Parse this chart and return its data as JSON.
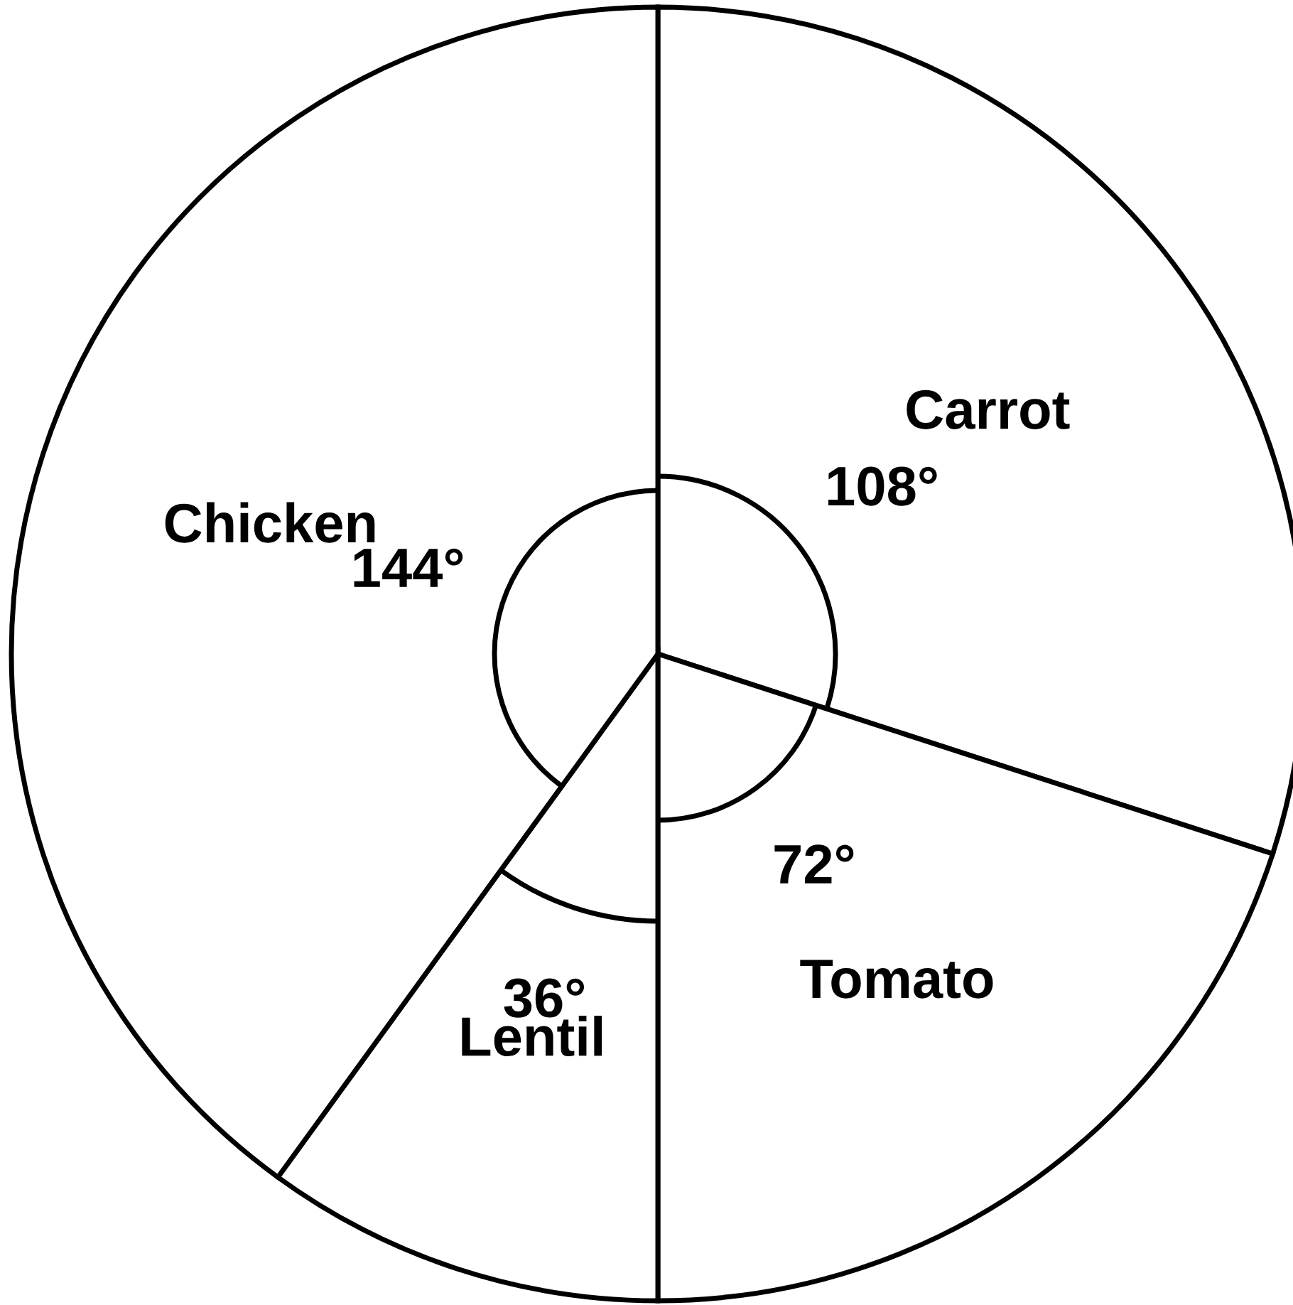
{
  "chart_data": {
    "type": "pie",
    "categories": [
      "Carrot",
      "Tomato",
      "Lentil",
      "Chicken"
    ],
    "values": [
      108,
      72,
      36,
      144
    ],
    "value_labels": [
      "108°",
      "72°",
      "36°",
      "144°"
    ],
    "colors": [
      "#ffffff",
      "#ffffff",
      "#ffffff",
      "#ffffff"
    ]
  }
}
